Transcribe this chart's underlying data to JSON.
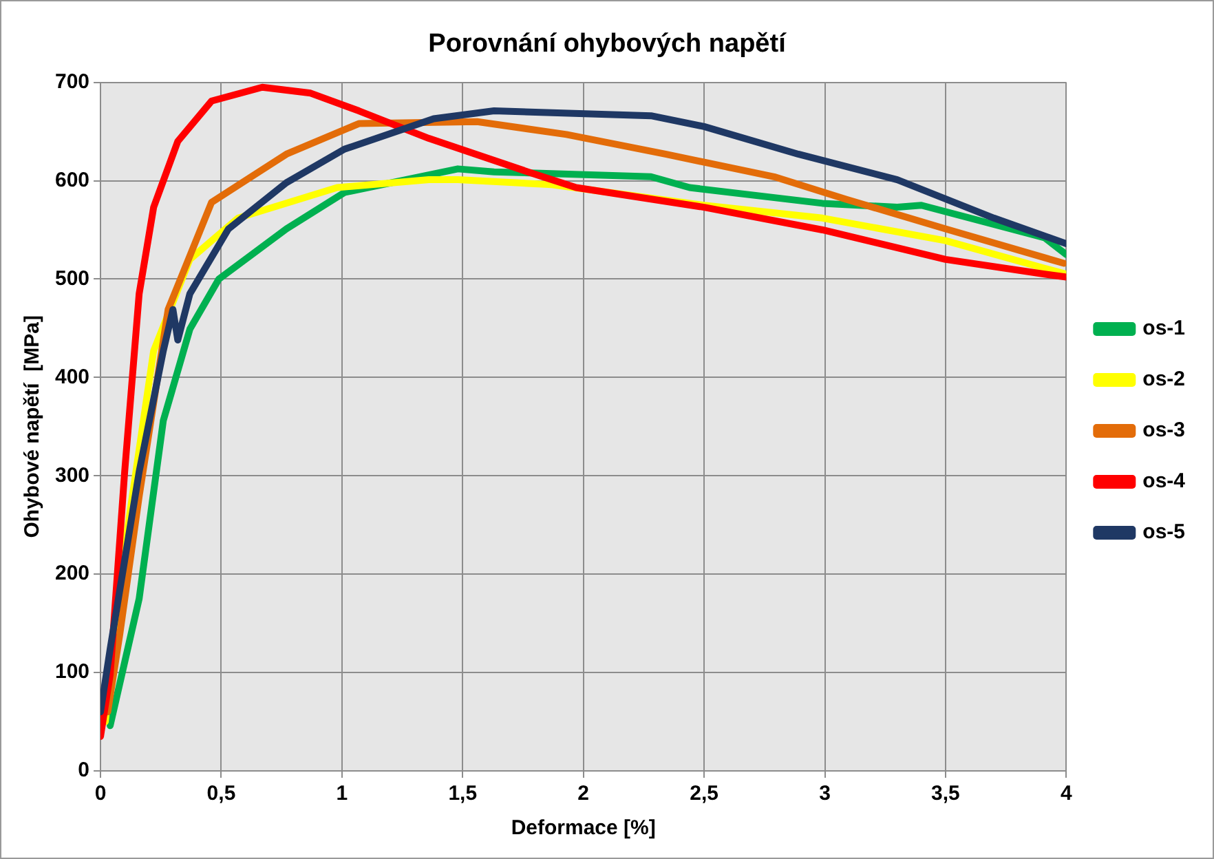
{
  "chart_data": {
    "type": "line",
    "title": "Porovnání ohybových napětí",
    "xlabel": "Deformace [%]",
    "ylabel": "Ohybové napětí  [MPa]",
    "xlim": [
      0,
      4
    ],
    "xticks": [
      0,
      {
        "value": 0.5,
        "label": "0,5"
      },
      1,
      {
        "value": 1.5,
        "label": "1,5"
      },
      2,
      {
        "value": 2.5,
        "label": "2,5"
      },
      3,
      {
        "value": 3.5,
        "label": "3,5"
      },
      4
    ],
    "ylim": [
      0,
      700
    ],
    "yticks": [
      0,
      100,
      200,
      300,
      400,
      500,
      600,
      700
    ],
    "grid": true,
    "legend": "right",
    "marker": "none",
    "line_style": "solid",
    "series": [
      {
        "name": "os-1",
        "color": "#00b050",
        "x": [
          0.04,
          0.16,
          0.26,
          0.37,
          0.49,
          0.77,
          1.01,
          1.48,
          1.63,
          2.28,
          2.44,
          2.99,
          3.3,
          3.4,
          3.91,
          4
        ],
        "values": [
          46,
          175,
          356,
          449,
          500,
          551,
          588,
          612,
          609,
          604,
          593,
          577,
          573,
          575,
          542,
          525
        ]
      },
      {
        "name": "os-2",
        "color": "#ffff00",
        "x": [
          0.02,
          0.1,
          0.22,
          0.37,
          0.57,
          0.98,
          1.36,
          1.48,
          1.87,
          2.5,
          2.99,
          3.5,
          3.91,
          4
        ],
        "values": [
          50,
          226,
          427,
          520,
          562,
          593,
          601,
          601,
          596,
          575,
          562,
          539,
          511,
          505
        ]
      },
      {
        "name": "os-3",
        "color": "#e36c09",
        "x": [
          0.03,
          0.08,
          0.16,
          0.28,
          0.46,
          0.77,
          1.07,
          1.56,
          1.93,
          2.34,
          2.79,
          3.09,
          3.5,
          3.99
        ],
        "values": [
          60,
          139,
          279,
          469,
          578,
          627,
          658,
          660,
          647,
          627,
          604,
          581,
          551,
          516
        ]
      },
      {
        "name": "os-4",
        "color": "#ff0000",
        "x": [
          0,
          0.04,
          0.1,
          0.16,
          0.22,
          0.32,
          0.46,
          0.67,
          0.87,
          1.07,
          1.36,
          1.77,
          1.97,
          2.5,
          2.99,
          3.5,
          3.91,
          4
        ],
        "values": [
          35,
          98,
          304,
          485,
          573,
          640,
          681,
          695,
          689,
          671,
          643,
          609,
          593,
          573,
          550,
          520,
          505,
          502
        ]
      },
      {
        "name": "os-5",
        "color": "#1f3864",
        "x": [
          0,
          0.04,
          0.16,
          0.26,
          0.3,
          0.32,
          0.37,
          0.53,
          0.77,
          1.01,
          1.38,
          1.63,
          2.28,
          2.5,
          2.89,
          3.3,
          3.7,
          4
        ],
        "values": [
          60,
          124,
          304,
          427,
          469,
          438,
          485,
          551,
          598,
          632,
          663,
          671,
          666,
          655,
          627,
          601,
          562,
          536
        ]
      }
    ]
  }
}
